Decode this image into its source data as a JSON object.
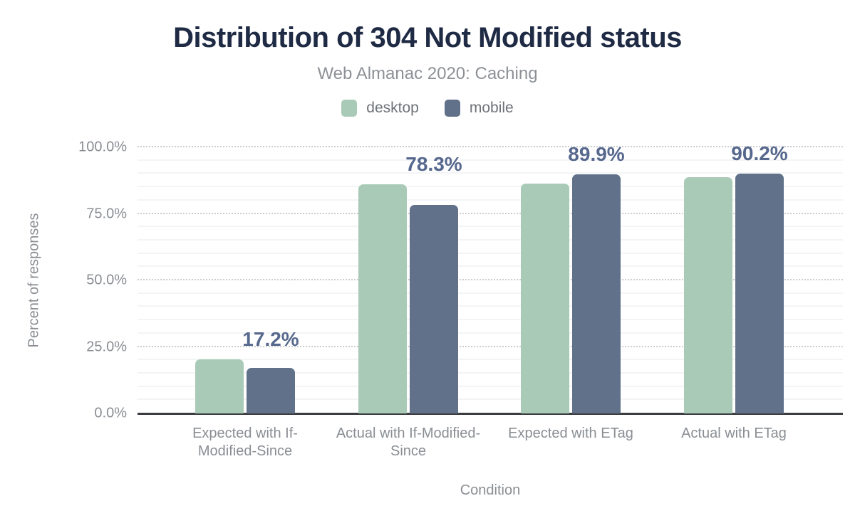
{
  "figure": {
    "title": "Distribution of 304 Not Modified status",
    "subtitle": "Web Almanac 2020: Caching"
  },
  "legend": [
    {
      "label": "desktop",
      "color": "#a9cab7"
    },
    {
      "label": "mobile",
      "color": "#607189"
    }
  ],
  "y_axis": {
    "title": "Percent of responses",
    "ticks": [
      {
        "value": 0,
        "label": "0.0%"
      },
      {
        "value": 25,
        "label": "25.0%"
      },
      {
        "value": 50,
        "label": "50.0%"
      },
      {
        "value": 75,
        "label": "75.0%"
      },
      {
        "value": 100,
        "label": "100.0%"
      }
    ]
  },
  "x_axis": {
    "title": "Condition"
  },
  "chart_data": {
    "type": "bar",
    "title": "Distribution of 304 Not Modified status",
    "subtitle": "Web Almanac 2020: Caching",
    "xlabel": "Condition",
    "ylabel": "Percent of responses",
    "ylim": [
      0,
      100
    ],
    "grid": {
      "major_step_percent": 25,
      "minor_step_percent": 5
    },
    "legend_position": "top",
    "categories": [
      "Expected with If-Modified-Since",
      "Actual with If-Modified-Since",
      "Expected with ETag",
      "Actual with ETag"
    ],
    "series": [
      {
        "name": "desktop",
        "color": "#a9cab7",
        "values": [
          20.2,
          86.0,
          86.3,
          88.7
        ]
      },
      {
        "name": "mobile",
        "color": "#607189",
        "values": [
          17.2,
          78.3,
          89.9,
          90.2
        ]
      }
    ],
    "data_labels": {
      "series": "mobile",
      "texts": [
        "17.2%",
        "78.3%",
        "89.9%",
        "90.2%"
      ],
      "color": "#56688d"
    }
  }
}
